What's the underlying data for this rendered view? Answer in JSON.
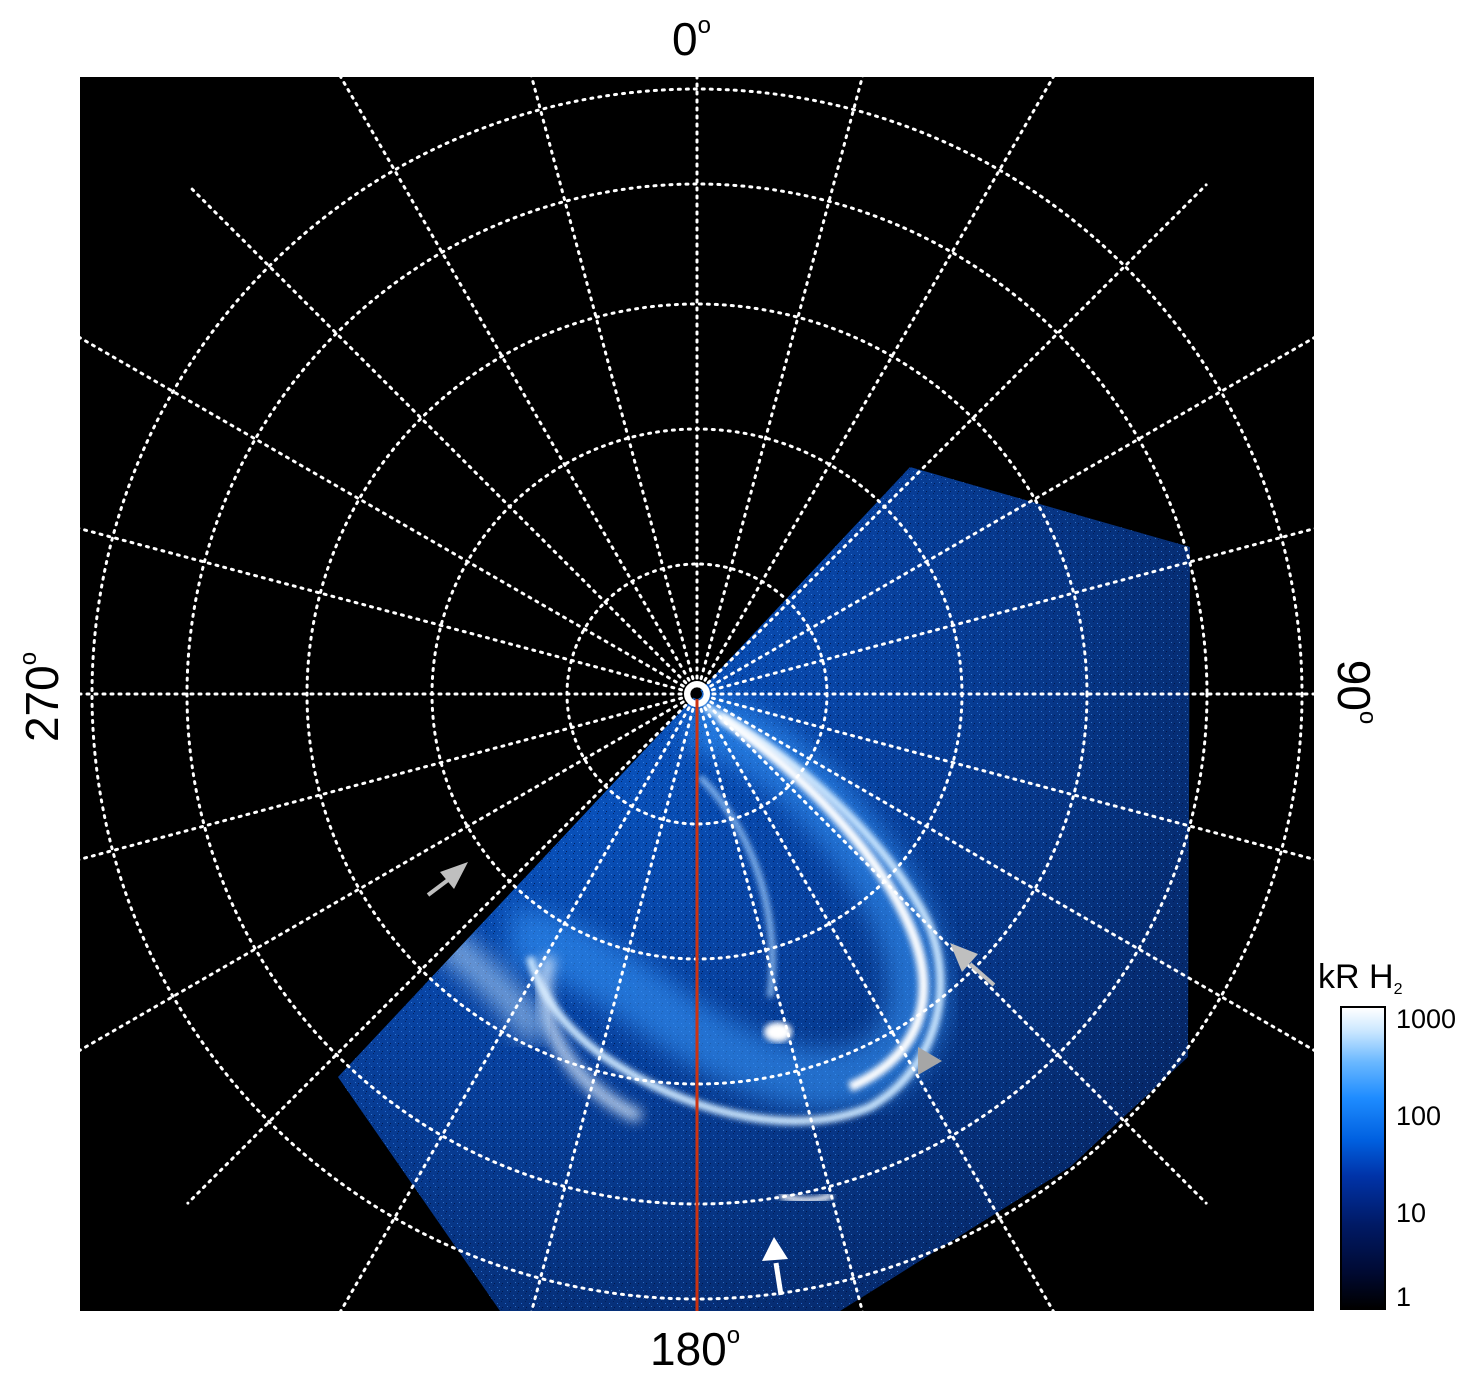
{
  "axes": {
    "top_value": "0",
    "right_value": "90",
    "bottom_value": "180",
    "left_value": "270",
    "degree_symbol": "o"
  },
  "colorbar": {
    "title": "kR H",
    "title_subscript": "2",
    "ticks": [
      "1000",
      "100",
      "10",
      "1"
    ],
    "scale": "log"
  },
  "colors": {
    "background": "#000000",
    "grid": "#ffffff",
    "meridian_line": "#cc3311",
    "aurora_bright": "#ffffff",
    "aurora_mid": "#1e8cff",
    "aurora_dim": "#0033a8",
    "arrow_gray": "#bfbfbf",
    "arrow_white": "#ffffff"
  },
  "annotations": [
    {
      "name": "gray-arrow-left"
    },
    {
      "name": "gray-arrow-right-upper"
    },
    {
      "name": "gray-arrowhead-right-lower"
    },
    {
      "name": "white-arrow-bottom"
    }
  ]
}
